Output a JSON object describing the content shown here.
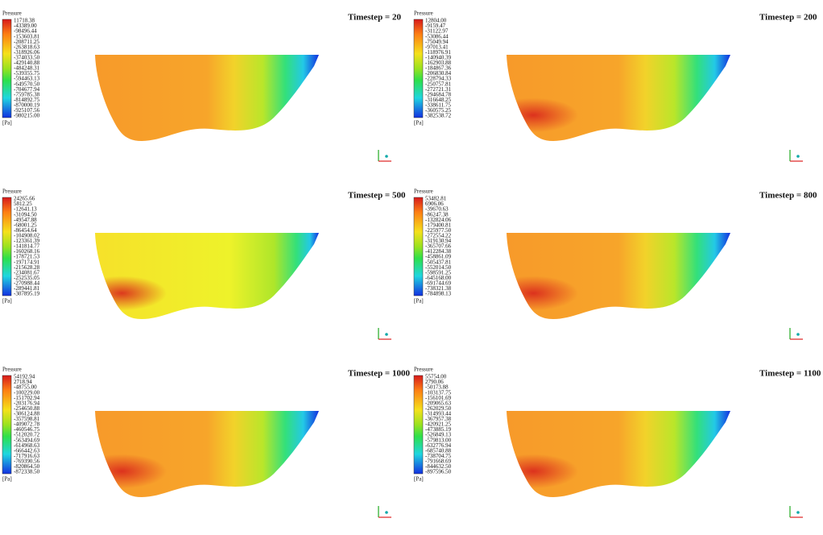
{
  "panels": [
    {
      "legend_title": "Pressure",
      "unit": "[Pa]",
      "timestep": "Timestep = 20",
      "legend_labels": [
        "11718.38",
        "-43389.00",
        "-98496.44",
        "-153603.81",
        "-208711.25",
        "-263818.63",
        "-318926.06",
        "-374033.50",
        "-429140.88",
        "-484248.31",
        "-539355.75",
        "-594463.13",
        "-649570.50",
        "-704677.94",
        "-759785.38",
        "-814892.75",
        "-870000.19",
        "-925107.56",
        "-980215.00"
      ]
    },
    {
      "legend_title": "Pressure",
      "unit": "[Pa]",
      "timestep": "Timestep = 200",
      "legend_labels": [
        "12804.00",
        "-9159.47",
        "-31122.97",
        "-53086.44",
        "-75049.94",
        "-97013.41",
        "-118976.91",
        "-140940.39",
        "-162903.88",
        "-184867.36",
        "-206830.84",
        "-228794.33",
        "-250757.81",
        "-272721.31",
        "-294684.78",
        "-316648.25",
        "-338611.75",
        "-360575.25",
        "-382538.72"
      ]
    },
    {
      "legend_title": "Pressure",
      "unit": "[Pa]",
      "timestep": "Timestep = 500",
      "legend_labels": [
        "24265.66",
        "5812.25",
        "-12641.13",
        "-31094.50",
        "-49547.88",
        "-68001.25",
        "-86454.64",
        "-104908.02",
        "-123361.39",
        "-141814.77",
        "-160268.16",
        "-178721.53",
        "-197174.91",
        "-215628.28",
        "-234081.67",
        "-252535.05",
        "-270988.44",
        "-289441.81",
        "-307895.19"
      ]
    },
    {
      "legend_title": "Pressure",
      "unit": "[Pa]",
      "timestep": "Timestep = 800",
      "legend_labels": [
        "53482.81",
        "6906.06",
        "-39670.63",
        "-86247.38",
        "-132824.06",
        "-179400.81",
        "-225977.50",
        "-272554.22",
        "-319130.94",
        "-365707.66",
        "-412284.38",
        "-458861.09",
        "-505437.81",
        "-552014.50",
        "-598591.25",
        "-645168.00",
        "-691744.69",
        "-738321.38",
        "-784898.13"
      ]
    },
    {
      "legend_title": "Pressure",
      "unit": "[Pa]",
      "timestep": "Timestep = 1000",
      "legend_labels": [
        "54192.94",
        "2718.94",
        "-48755.00",
        "-100229.00",
        "-151702.94",
        "-203176.94",
        "-254650.88",
        "-306124.88",
        "-357598.81",
        "-409072.78",
        "-460546.75",
        "-512020.72",
        "-563494.69",
        "-614968.63",
        "-666442.63",
        "-717916.63",
        "-769390.56",
        "-820864.50",
        "-872338.50"
      ]
    },
    {
      "legend_title": "Pressure",
      "unit": "[Pa]",
      "timestep": "Timestep = 1100",
      "legend_labels": [
        "55754.00",
        "2790.06",
        "-50173.88",
        "-103137.75",
        "-156101.69",
        "-209065.63",
        "-262029.50",
        "-314993.44",
        "-367957.38",
        "-420921.25",
        "-473885.19",
        "-526849.13",
        "-579813.00",
        "-632776.94",
        "-685740.88",
        "-738704.75",
        "-791668.69",
        "-844632.50",
        "-897596.50"
      ]
    }
  ]
}
